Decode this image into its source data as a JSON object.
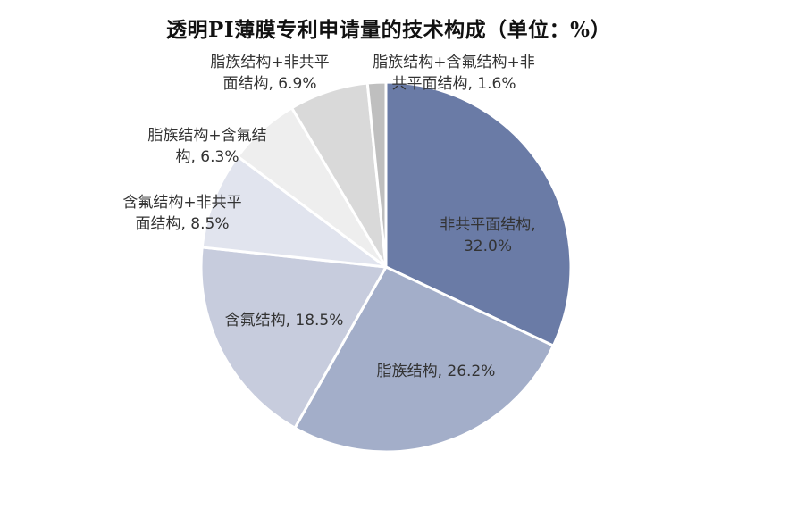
{
  "chart_data": {
    "type": "pie",
    "title": "透明PI薄膜专利申请量的技术构成（单位：%）",
    "slices": [
      {
        "name": "非共平面结构",
        "value": 32.0,
        "label_lines": [
          "非共平面结构,",
          "32.0%"
        ],
        "color": "#6a7ba6"
      },
      {
        "name": "脂族结构",
        "value": 26.2,
        "label_lines": [
          "脂族结构, 26.2%"
        ],
        "color": "#a3aec9"
      },
      {
        "name": "含氟结构",
        "value": 18.5,
        "label_lines": [
          "含氟结构, 18.5%"
        ],
        "color": "#c7ccdd"
      },
      {
        "name": "含氟结构+非共平面结构",
        "value": 8.5,
        "label_lines": [
          "含氟结构+非共平",
          "面结构, 8.5%"
        ],
        "color": "#e1e4ee"
      },
      {
        "name": "脂族结构+含氟结构",
        "value": 6.3,
        "label_lines": [
          "脂族结构+含氟结",
          "构, 6.3%"
        ],
        "color": "#eeeeee"
      },
      {
        "name": "脂族结构+非共平面结构",
        "value": 6.9,
        "label_lines": [
          "脂族结构+非共平",
          "面结构, 6.9%"
        ],
        "color": "#d9d9d9"
      },
      {
        "name": "脂族结构+含氟结构+非共平面结构",
        "value": 1.6,
        "label_lines": [
          "脂族结构+含氟结构+非",
          "共平面结构, 1.6%"
        ],
        "color": "#bfbfbf"
      }
    ]
  }
}
